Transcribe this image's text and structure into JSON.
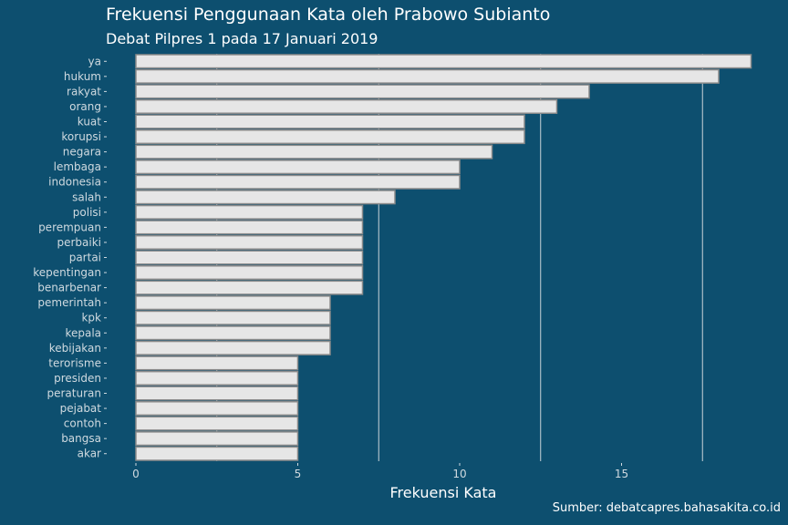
{
  "title": "Frekuensi Penggunaan Kata oleh Prabowo Subianto",
  "subtitle": "Debat Pilpres 1 pada 17 Januari 2019",
  "caption": "Sumber: debatcapres.bahasakita.co.id",
  "colors": {
    "background": "#0d4f6f",
    "bar_fill": "#e6e6e6",
    "bar_stroke": "#8a8a8a",
    "grid": "#c9d3d9",
    "text": "#ffffff"
  },
  "chart_data": {
    "type": "bar",
    "orientation": "horizontal",
    "categories": [
      "ya",
      "hukum",
      "rakyat",
      "orang",
      "kuat",
      "korupsi",
      "negara",
      "lembaga",
      "indonesia",
      "salah",
      "polisi",
      "perempuan",
      "perbaiki",
      "partai",
      "kepentingan",
      "benarbenar",
      "pemerintah",
      "kpk",
      "kepala",
      "kebijakan",
      "terorisme",
      "presiden",
      "peraturan",
      "pejabat",
      "contoh",
      "bangsa",
      "akar"
    ],
    "values": [
      19,
      18,
      14,
      13,
      12,
      12,
      11,
      10,
      10,
      8,
      7,
      7,
      7,
      7,
      7,
      7,
      6,
      6,
      6,
      6,
      5,
      5,
      5,
      5,
      5,
      5,
      5
    ],
    "xlabel": "Frekuensi Kata",
    "ylabel": "",
    "x_ticks": [
      0,
      5,
      10,
      15
    ],
    "xlim": [
      0,
      19
    ],
    "grid": "vertical major lines only",
    "legend": "none"
  }
}
